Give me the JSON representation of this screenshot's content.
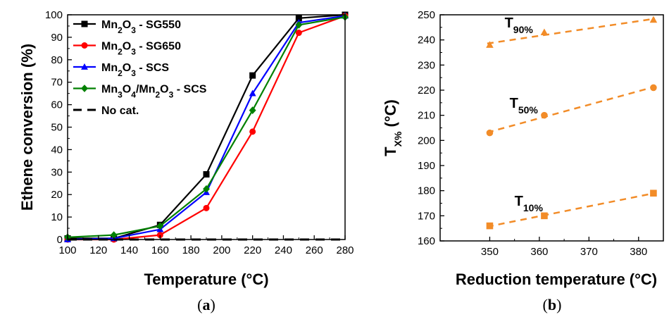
{
  "chart_data": [
    {
      "panel_label": "a",
      "type": "line",
      "xlabel": "Temperature (°C)",
      "ylabel": "Ethene conversion (%)",
      "xlim": [
        100,
        280
      ],
      "ylim": [
        0,
        100
      ],
      "xticks": [
        100,
        120,
        140,
        160,
        180,
        200,
        220,
        240,
        260,
        280
      ],
      "yticks": [
        0,
        10,
        20,
        30,
        40,
        50,
        60,
        70,
        80,
        90,
        100
      ],
      "legend_position": "top-left",
      "series": [
        {
          "name": "Mn2O3 - SG550",
          "name_parts": [
            "Mn",
            "2",
            "O",
            "3",
            " - SG550"
          ],
          "color": "#000000",
          "marker": "square",
          "x": [
            100,
            130,
            160,
            190,
            220,
            250,
            280
          ],
          "y": [
            0.5,
            0.5,
            6.5,
            29,
            73,
            98.5,
            100
          ]
        },
        {
          "name": "Mn2O3 - SG650",
          "name_parts": [
            "Mn",
            "2",
            "O",
            "3",
            " - SG650"
          ],
          "color": "#ff0000",
          "marker": "circle",
          "x": [
            100,
            130,
            160,
            190,
            220,
            250,
            280
          ],
          "y": [
            0,
            0,
            2,
            14,
            48,
            92,
            99.5
          ]
        },
        {
          "name": "Mn2O3 - SCS",
          "name_parts": [
            "Mn",
            "2",
            "O",
            "3",
            " - SCS"
          ],
          "color": "#0000ff",
          "marker": "triangle",
          "x": [
            100,
            130,
            160,
            190,
            220,
            250,
            280
          ],
          "y": [
            0,
            0.5,
            4.5,
            21,
            65,
            96.5,
            99.5
          ]
        },
        {
          "name": "Mn3O4/Mn2O3 - SCS",
          "name_parts": [
            "Mn",
            "3",
            "O",
            "4",
            "/Mn",
            "2",
            "O",
            "3",
            " - SCS"
          ],
          "color": "#008000",
          "marker": "diamond",
          "x": [
            100,
            130,
            160,
            190,
            220,
            250,
            280
          ],
          "y": [
            1,
            2,
            6,
            22.5,
            57.5,
            95.5,
            99
          ]
        },
        {
          "name": "No cat.",
          "name_parts": [
            "No cat."
          ],
          "color": "#000000",
          "marker": "none",
          "dashed": true,
          "x": [
            100,
            280
          ],
          "y": [
            0,
            0
          ]
        }
      ]
    },
    {
      "panel_label": "b",
      "type": "scatter",
      "xlabel": "Reduction temperature (°C)",
      "ylabel_parts": [
        "T",
        "X%",
        " (°C)"
      ],
      "xlim": [
        340,
        385
      ],
      "ylim": [
        160,
        250
      ],
      "xticks": [
        350,
        360,
        370,
        380
      ],
      "yticks": [
        160,
        170,
        180,
        190,
        200,
        210,
        220,
        230,
        240,
        250
      ],
      "color": "#f28c28",
      "series": [
        {
          "name_parts": [
            "T",
            "90%"
          ],
          "marker": "triangle",
          "x": [
            350,
            361,
            383
          ],
          "y": [
            238,
            243,
            248
          ],
          "label_x": 353,
          "label_y": 245
        },
        {
          "name_parts": [
            "T",
            "50%"
          ],
          "marker": "circle",
          "x": [
            350,
            361,
            383
          ],
          "y": [
            203,
            210,
            221
          ],
          "label_x": 354,
          "label_y": 213
        },
        {
          "name_parts": [
            "T",
            "10%"
          ],
          "marker": "square",
          "x": [
            350,
            361,
            383
          ],
          "y": [
            166,
            170,
            179
          ],
          "label_x": 355,
          "label_y": 174
        }
      ]
    }
  ]
}
